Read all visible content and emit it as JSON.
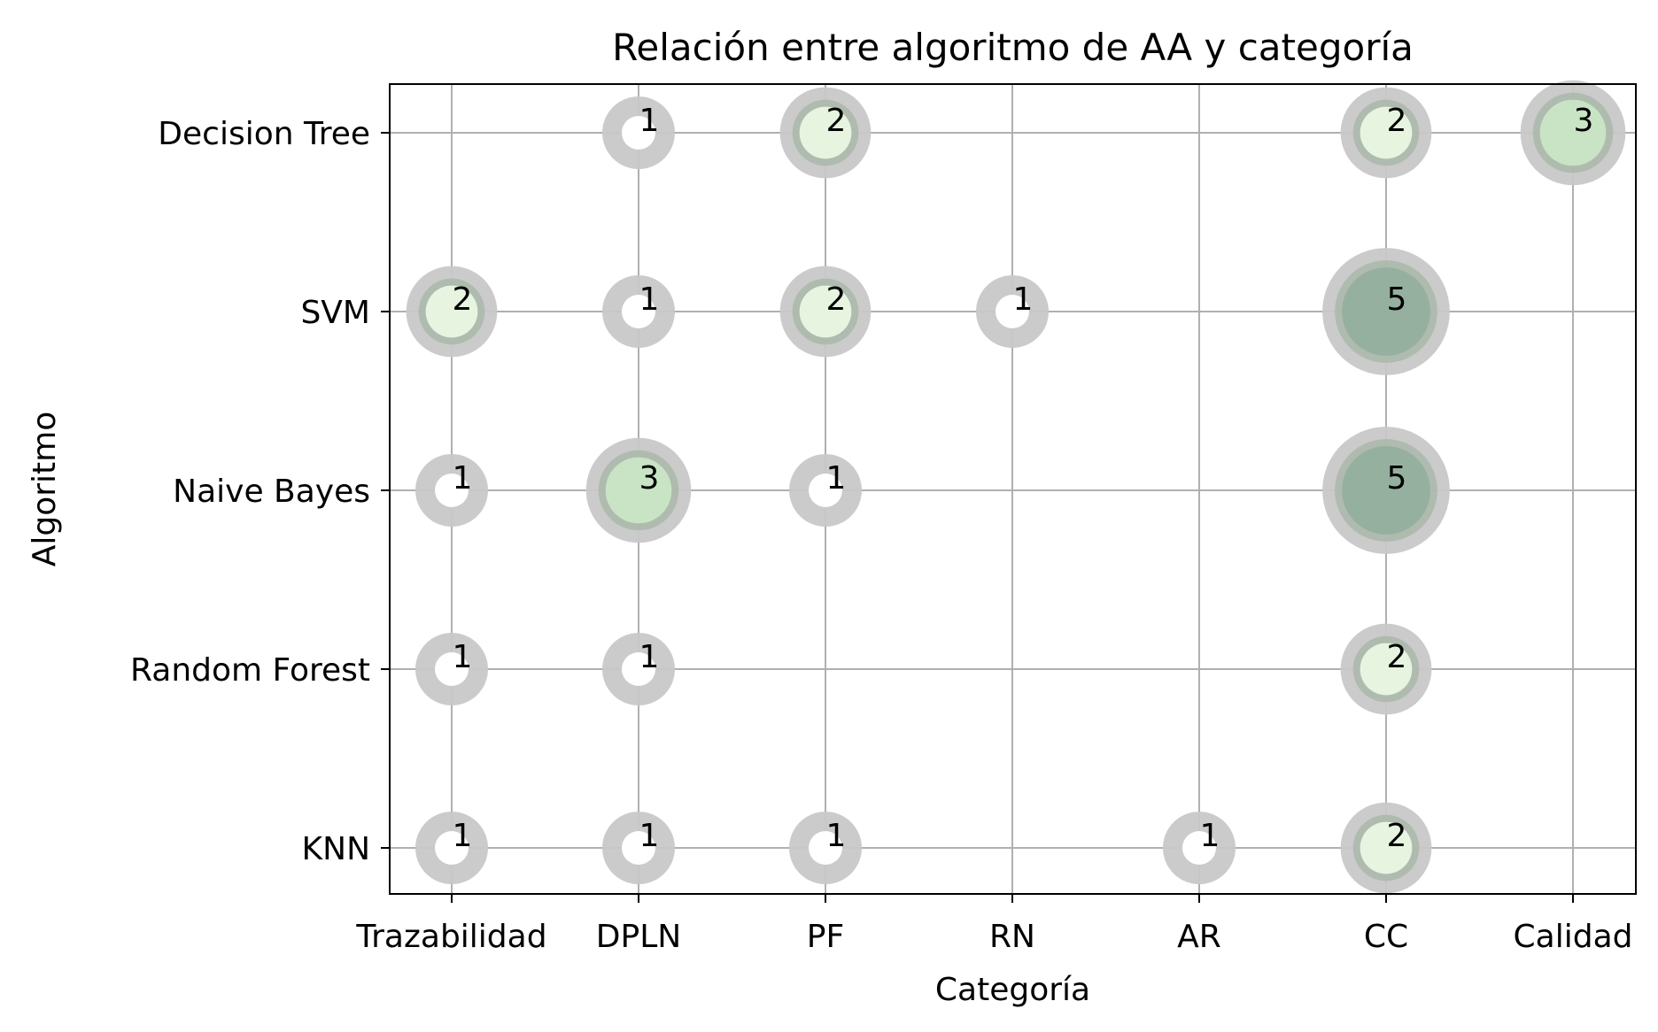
{
  "chart_data": {
    "type": "scatter",
    "title": "Relación entre algoritmo de AA y categoría",
    "xlabel": "Categoría",
    "ylabel": "Algoritmo",
    "categories": [
      "Trazabilidad",
      "DPLN",
      "PF",
      "RN",
      "AR",
      "CC",
      "Calidad"
    ],
    "rows": [
      "KNN",
      "Random Forest",
      "Naive Bayes",
      "SVM",
      "Decision Tree"
    ],
    "grid": true,
    "points": [
      {
        "x": "Trazabilidad",
        "y": "KNN",
        "value": 1
      },
      {
        "x": "DPLN",
        "y": "KNN",
        "value": 1
      },
      {
        "x": "PF",
        "y": "KNN",
        "value": 1
      },
      {
        "x": "AR",
        "y": "KNN",
        "value": 1
      },
      {
        "x": "CC",
        "y": "KNN",
        "value": 2
      },
      {
        "x": "Trazabilidad",
        "y": "Random Forest",
        "value": 1
      },
      {
        "x": "DPLN",
        "y": "Random Forest",
        "value": 1
      },
      {
        "x": "CC",
        "y": "Random Forest",
        "value": 2
      },
      {
        "x": "Trazabilidad",
        "y": "Naive Bayes",
        "value": 1
      },
      {
        "x": "DPLN",
        "y": "Naive Bayes",
        "value": 3
      },
      {
        "x": "PF",
        "y": "Naive Bayes",
        "value": 1
      },
      {
        "x": "CC",
        "y": "Naive Bayes",
        "value": 5
      },
      {
        "x": "Trazabilidad",
        "y": "SVM",
        "value": 2
      },
      {
        "x": "DPLN",
        "y": "SVM",
        "value": 1
      },
      {
        "x": "PF",
        "y": "SVM",
        "value": 2
      },
      {
        "x": "RN",
        "y": "SVM",
        "value": 1
      },
      {
        "x": "CC",
        "y": "SVM",
        "value": 5
      },
      {
        "x": "DPLN",
        "y": "Decision Tree",
        "value": 1
      },
      {
        "x": "PF",
        "y": "Decision Tree",
        "value": 2
      },
      {
        "x": "CC",
        "y": "Decision Tree",
        "value": 2
      },
      {
        "x": "Calidad",
        "y": "Decision Tree",
        "value": 3
      }
    ],
    "colors": {
      "halo": "#c8c8c8",
      "value_1": "#ffffff",
      "value_2": "#e6f4e0",
      "value_3": "#c8e4c4",
      "value_5": "#96b0a0",
      "grid": "#b0b0b0",
      "axis": "#000000"
    }
  }
}
